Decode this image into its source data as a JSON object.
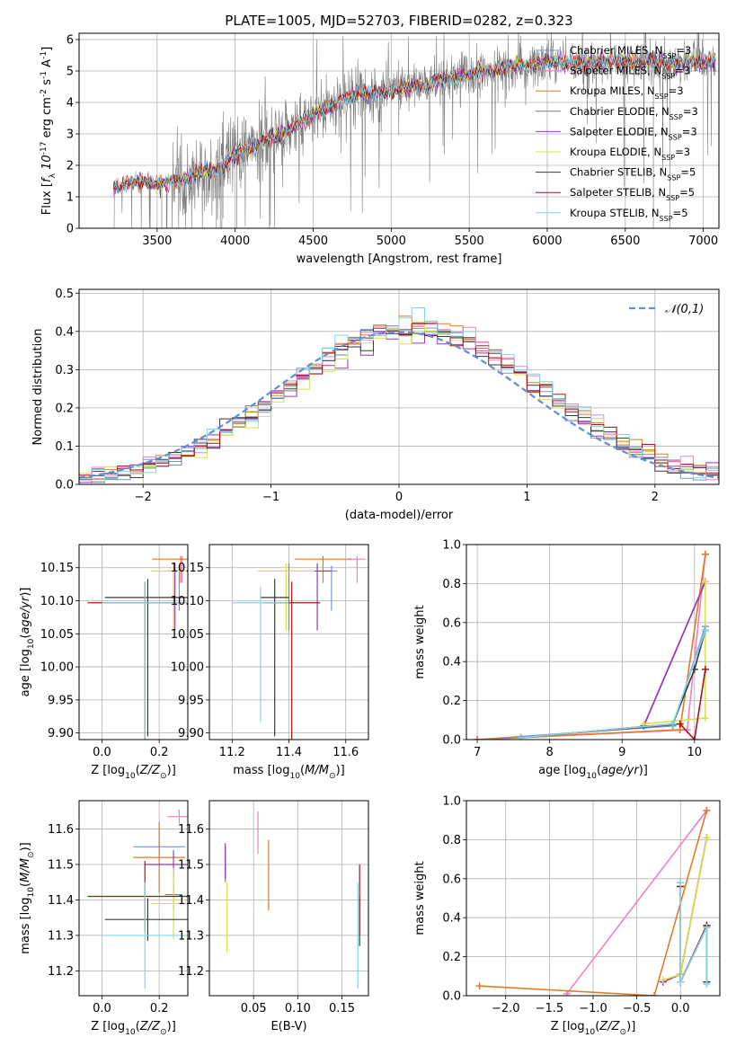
{
  "colors": {
    "Chabrier MILES": "#6f97e6",
    "Salpeter MILES": "#ee82c4",
    "Kroupa MILES": "#e07b2a",
    "Chabrier ELODIE": "#7f7f7f",
    "Salpeter ELODIE": "#9b35c2",
    "Kroupa ELODIE": "#d9e04c",
    "Chabrier STELIB": "#3a3a3a",
    "Salpeter STELIB": "#a51616",
    "Kroupa STELIB": "#7fd7e6"
  },
  "chart_data": [
    {
      "id": "spectrum",
      "type": "line",
      "title": "PLATE=1005, MJD=52703, FIBERID=0282, z=0.323",
      "xlabel": "wavelength [Angstrom, rest frame]",
      "ylabel": "Flux [$f_\\lambda 10^{-17}$ erg cm$^{-2}$ s$^{-1}$ A$^{-1}$]",
      "xlim": [
        3000,
        7100
      ],
      "ylim": [
        0,
        6.2
      ],
      "xticks": [
        3500,
        4000,
        4500,
        5000,
        5500,
        6000,
        6500,
        7000
      ],
      "yticks": [
        0,
        1,
        2,
        3,
        4,
        5,
        6
      ],
      "legend_position": "upper-right",
      "legend": [
        "Chabrier MILES, N$_{SSP}$=3",
        "Salpeter MILES, N$_{SSP}$=3",
        "Kroupa MILES, N$_{SSP}$=3",
        "Chabrier ELODIE, N$_{SSP}$=3",
        "Salpeter ELODIE, N$_{SSP}$=3",
        "Kroupa ELODIE, N$_{SSP}$=3",
        "Chabrier STELIB, N$_{SSP}$=5",
        "Salpeter STELIB, N$_{SSP}$=5",
        "Kroupa STELIB, N$_{SSP}$=5"
      ],
      "legend_series": [
        "Chabrier MILES",
        "Salpeter MILES",
        "Kroupa MILES",
        "Chabrier ELODIE",
        "Salpeter ELODIE",
        "Kroupa ELODIE",
        "Chabrier STELIB",
        "Salpeter STELIB",
        "Kroupa STELIB"
      ],
      "data_series": "Chabrier ELODIE",
      "model_x": [
        3220,
        3300,
        3400,
        3500,
        3600,
        3700,
        3800,
        3900,
        4000,
        4100,
        4200,
        4300,
        4400,
        4500,
        4600,
        4700,
        4800,
        4900,
        5000,
        5100,
        5200,
        5300,
        5400,
        5500,
        5600,
        5700,
        5800,
        5900,
        6000,
        6100,
        6200,
        6300,
        6400,
        6500,
        6600,
        6700,
        6800,
        6900,
        7000
      ],
      "model_y": [
        1.3,
        1.4,
        1.5,
        1.4,
        1.5,
        1.6,
        1.8,
        1.9,
        2.3,
        2.6,
        2.8,
        3.0,
        3.3,
        3.6,
        3.9,
        4.1,
        4.3,
        4.3,
        4.4,
        4.5,
        4.5,
        4.7,
        4.8,
        4.9,
        5.0,
        5.1,
        5.2,
        5.2,
        5.3,
        5.3,
        5.2,
        5.3,
        5.3,
        5.3,
        5.3,
        5.3,
        5.2,
        5.3,
        5.3
      ]
    },
    {
      "id": "residuals",
      "type": "step",
      "xlabel": "(data-model)/error",
      "ylabel": "Normed distribution",
      "xlim": [
        -2.5,
        2.5
      ],
      "ylim": [
        0,
        0.51
      ],
      "xticks": [
        -2,
        -1,
        0,
        1,
        2
      ],
      "yticks": [
        0.0,
        0.1,
        0.2,
        0.3,
        0.4,
        0.5
      ],
      "legend": [
        "$\\mathcal{N}(0,1)$"
      ],
      "legend_position": "upper-right",
      "bin_width": 0.1,
      "bin_start": -2.5
    },
    {
      "id": "age-vs-Z",
      "type": "errorbar",
      "xlabel": "Z [log$_{10}$($Z/Z_\\odot$)]",
      "ylabel": "age  [log$_{10}$($age/yr$)]",
      "xlim": [
        -0.08,
        0.3
      ],
      "ylim": [
        9.89,
        10.185
      ],
      "xticks": [
        0.0,
        0.2
      ],
      "yticks": [
        9.9,
        9.95,
        10.0,
        10.05,
        10.1,
        10.15
      ],
      "points": [
        {
          "series": "Chabrier MILES",
          "x": 0.27,
          "xerr": 0.01,
          "y": 10.145,
          "yerr": 0.02
        },
        {
          "series": "Salpeter MILES",
          "x": 0.28,
          "xerr": 0.01,
          "y": 10.163,
          "yerr": 0.012
        },
        {
          "series": "Kroupa MILES",
          "x": 0.275,
          "xerr": 0.1,
          "y": 10.163,
          "yerr": 0.012
        },
        {
          "series": "Chabrier ELODIE",
          "x": 0.25,
          "xerr": 0.03,
          "y": 10.145,
          "yerr": 0.03
        },
        {
          "series": "Salpeter ELODIE",
          "x": 0.255,
          "xerr": 0.03,
          "y": 10.145,
          "yerr": 0.03
        },
        {
          "series": "Kroupa ELODIE",
          "x": 0.25,
          "xerr": 0.08,
          "y": 10.145,
          "yerr": 0.03
        },
        {
          "series": "Chabrier STELIB",
          "x": 0.16,
          "xerr": 0.15,
          "y": 10.105,
          "yerr": 0.07
        },
        {
          "series": "Salpeter STELIB",
          "x": 0.15,
          "xerr": 0.2,
          "y": 10.097,
          "yerr": 0.08
        },
        {
          "series": "Kroupa STELIB",
          "x": 0.15,
          "xerr": 0.15,
          "y": 10.097,
          "yerr": 0.08
        }
      ]
    },
    {
      "id": "age-vs-mass",
      "type": "errorbar",
      "xlabel": "mass [log$_{10}$($M/M_\\odot$)]",
      "ylabel": "",
      "xlim": [
        11.12,
        11.68
      ],
      "ylim": [
        9.89,
        10.185
      ],
      "xticks": [
        11.2,
        11.4,
        11.6
      ],
      "yticks": [
        9.9,
        9.95,
        10.0,
        10.05,
        10.1,
        10.15
      ],
      "points": [
        {
          "series": "Chabrier MILES",
          "x": 11.55,
          "xerr": 0.02,
          "y": 10.145,
          "yerr": 0.02
        },
        {
          "series": "Salpeter MILES",
          "x": 11.64,
          "xerr": 0.03,
          "y": 10.163,
          "yerr": 0.012
        },
        {
          "series": "Kroupa MILES",
          "x": 11.52,
          "xerr": 0.1,
          "y": 10.163,
          "yerr": 0.012
        },
        {
          "series": "Chabrier ELODIE",
          "x": 11.4,
          "xerr": 0.03,
          "y": 10.145,
          "yerr": 0.03
        },
        {
          "series": "Salpeter ELODIE",
          "x": 11.5,
          "xerr": 0.05,
          "y": 10.145,
          "yerr": 0.03
        },
        {
          "series": "Kroupa ELODIE",
          "x": 11.39,
          "xerr": 0.1,
          "y": 10.145,
          "yerr": 0.03
        },
        {
          "series": "Chabrier STELIB",
          "x": 11.35,
          "xerr": 0.05,
          "y": 10.105,
          "yerr": 0.07
        },
        {
          "series": "Salpeter STELIB",
          "x": 11.41,
          "xerr": 0.1,
          "y": 10.097,
          "yerr": 0.08
        },
        {
          "series": "Kroupa STELIB",
          "x": 11.3,
          "xerr": 0.1,
          "y": 10.097,
          "yerr": 0.06
        }
      ]
    },
    {
      "id": "weight-vs-age",
      "type": "line",
      "xlabel": "age  [log$_{10}$($age/yr$)]",
      "ylabel": "mass weight",
      "xlim": [
        6.85,
        10.35
      ],
      "ylim": [
        0,
        1.0
      ],
      "xticks": [
        7,
        8,
        9,
        10
      ],
      "yticks": [
        0.0,
        0.2,
        0.4,
        0.6,
        0.8,
        1.0
      ],
      "series": [
        {
          "series": "Chabrier MILES",
          "x": [
            7.0,
            9.7,
            10.15
          ],
          "y": [
            0.0,
            0.07,
            0.58
          ]
        },
        {
          "series": "Salpeter MILES",
          "x": [
            7.0,
            9.9,
            10.15
          ],
          "y": [
            0.0,
            0.05,
            0.95
          ]
        },
        {
          "series": "Kroupa MILES",
          "x": [
            7.0,
            9.8,
            10.15
          ],
          "y": [
            0.0,
            0.05,
            0.95
          ]
        },
        {
          "series": "Chabrier ELODIE",
          "x": [
            9.3,
            10.15
          ],
          "y": [
            0.07,
            0.81
          ]
        },
        {
          "series": "Salpeter ELODIE",
          "x": [
            9.3,
            10.15
          ],
          "y": [
            0.07,
            0.81
          ]
        },
        {
          "series": "Kroupa ELODIE",
          "x": [
            9.3,
            10.15,
            10.15
          ],
          "y": [
            0.08,
            0.11,
            0.81
          ]
        },
        {
          "series": "Chabrier STELIB",
          "x": [
            7.6,
            9.7,
            10.0,
            10.15
          ],
          "y": [
            0.01,
            0.08,
            0.36,
            0.56
          ]
        },
        {
          "series": "Salpeter STELIB",
          "x": [
            7.6,
            9.8,
            10.0,
            10.15
          ],
          "y": [
            0.01,
            0.08,
            0.0,
            0.36
          ]
        },
        {
          "series": "Kroupa STELIB",
          "x": [
            7.6,
            9.7,
            10.15
          ],
          "y": [
            0.01,
            0.08,
            0.56
          ]
        }
      ]
    },
    {
      "id": "mass-vs-Z",
      "type": "errorbar",
      "xlabel": "Z [log$_{10}$($Z/Z_\\odot$)]",
      "ylabel": "mass [log$_{10}$($M/M_\\odot$)]",
      "xlim": [
        -0.08,
        0.3
      ],
      "ylim": [
        11.13,
        11.68
      ],
      "xticks": [
        0.0,
        0.2
      ],
      "yticks": [
        11.2,
        11.3,
        11.4,
        11.5,
        11.6
      ],
      "points": [
        {
          "series": "Chabrier MILES",
          "x": 0.2,
          "xerr": 0.09,
          "y": 11.55,
          "yerr": 0.02
        },
        {
          "series": "Salpeter MILES",
          "x": 0.27,
          "xerr": 0.04,
          "y": 11.635,
          "yerr": 0.02
        },
        {
          "series": "Kroupa MILES",
          "x": 0.2,
          "xerr": 0.09,
          "y": 11.52,
          "yerr": 0.1
        },
        {
          "series": "Chabrier ELODIE",
          "x": 0.25,
          "xerr": 0.03,
          "y": 11.415,
          "yerr": 0.04
        },
        {
          "series": "Salpeter ELODIE",
          "x": 0.25,
          "xerr": 0.1,
          "y": 11.5,
          "yerr": 0.04
        },
        {
          "series": "Kroupa ELODIE",
          "x": 0.25,
          "xerr": 0.08,
          "y": 11.39,
          "yerr": 0.1
        },
        {
          "series": "Chabrier STELIB",
          "x": 0.16,
          "xerr": 0.15,
          "y": 11.345,
          "yerr": 0.06
        },
        {
          "series": "Salpeter STELIB",
          "x": 0.15,
          "xerr": 0.2,
          "y": 11.41,
          "yerr": 0.1
        },
        {
          "series": "Kroupa STELIB",
          "x": 0.15,
          "xerr": 0.15,
          "y": 11.3,
          "yerr": 0.15
        }
      ]
    },
    {
      "id": "mass-vs-EBV",
      "type": "errorbar",
      "xlabel": "E(B-V)",
      "ylabel": "",
      "xlim": [
        0.0,
        0.18
      ],
      "ylim": [
        11.13,
        11.68
      ],
      "xticks": [
        0.05,
        0.1,
        0.15
      ],
      "yticks": [
        11.2,
        11.3,
        11.4,
        11.5,
        11.6
      ],
      "points": [
        {
          "series": "Chabrier MILES",
          "x": 0.018,
          "y": 11.5,
          "yerr": 0.02
        },
        {
          "series": "Salpeter MILES",
          "x": 0.055,
          "y": 11.59,
          "yerr": 0.06
        },
        {
          "series": "Kroupa MILES",
          "x": 0.067,
          "y": 11.47,
          "yerr": 0.1
        },
        {
          "series": "Chabrier ELODIE",
          "x": 0.018,
          "y": 11.5,
          "yerr": 0.05
        },
        {
          "series": "Salpeter ELODIE",
          "x": 0.018,
          "y": 11.51,
          "yerr": 0.05
        },
        {
          "series": "Kroupa ELODIE",
          "x": 0.02,
          "y": 11.35,
          "yerr": 0.1
        },
        {
          "series": "Chabrier STELIB",
          "x": 0.17,
          "y": 11.34,
          "yerr": 0.07
        },
        {
          "series": "Salpeter STELIB",
          "x": 0.17,
          "y": 11.4,
          "yerr": 0.1
        },
        {
          "series": "Kroupa STELIB",
          "x": 0.168,
          "y": 11.3,
          "yerr": 0.15
        }
      ]
    },
    {
      "id": "weight-vs-Z",
      "type": "line",
      "xlabel": "Z [log$_{10}$($Z/Z_\\odot$)]",
      "ylabel": "mass weight",
      "xlim": [
        -2.45,
        0.45
      ],
      "ylim": [
        0,
        1.0
      ],
      "xticks": [
        -2.0,
        -1.5,
        -1.0,
        -0.5,
        0.0
      ],
      "yticks": [
        0.0,
        0.2,
        0.4,
        0.6,
        0.8,
        1.0
      ],
      "series": [
        {
          "series": "Chabrier MILES",
          "x": [
            0.0,
            0.0,
            0.3
          ],
          "y": [
            0.58,
            0.07,
            0.35
          ]
        },
        {
          "series": "Salpeter MILES",
          "x": [
            -1.3,
            0.3
          ],
          "y": [
            0.01,
            0.95
          ]
        },
        {
          "series": "Kroupa MILES",
          "x": [
            -2.3,
            -0.3,
            0.3
          ],
          "y": [
            0.05,
            0.0,
            0.95
          ]
        },
        {
          "series": "Chabrier ELODIE",
          "x": [
            -0.2,
            0.0,
            0.3
          ],
          "y": [
            0.07,
            0.11,
            0.81
          ]
        },
        {
          "series": "Salpeter ELODIE",
          "x": [
            -0.2,
            0.0,
            0.3
          ],
          "y": [
            0.07,
            0.11,
            0.81
          ]
        },
        {
          "series": "Kroupa ELODIE",
          "x": [
            -0.2,
            0.0,
            0.3
          ],
          "y": [
            0.08,
            0.11,
            0.81
          ]
        },
        {
          "series": "Chabrier STELIB",
          "x": [
            0.0,
            0.0,
            0.3,
            0.3
          ],
          "y": [
            0.56,
            0.07,
            0.36,
            0.07
          ]
        },
        {
          "series": "Salpeter STELIB",
          "x": [
            0.0,
            0.0,
            0.3
          ],
          "y": [
            0.56,
            0.07,
            0.36
          ]
        },
        {
          "series": "Kroupa STELIB",
          "x": [
            0.0,
            0.0,
            0.3,
            0.3
          ],
          "y": [
            0.58,
            0.07,
            0.35,
            0.06
          ]
        }
      ]
    }
  ]
}
